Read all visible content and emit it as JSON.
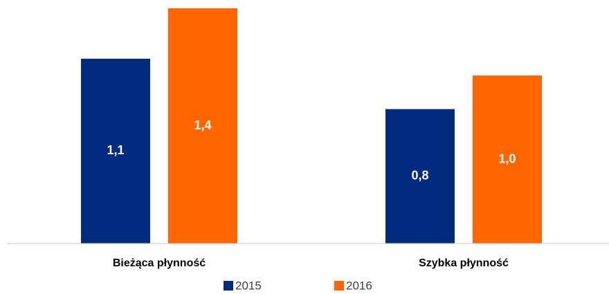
{
  "chart_data": {
    "type": "bar",
    "categories": [
      "Bieżąca płynność",
      "Szybka płynność"
    ],
    "series": [
      {
        "name": "2015",
        "color": "#002b7f",
        "values": [
          1.1,
          0.8
        ],
        "value_labels": [
          "1,1",
          "0,8"
        ]
      },
      {
        "name": "2016",
        "color": "#ff6600",
        "values": [
          1.4,
          1.0
        ],
        "value_labels": [
          "1,4",
          "1,0"
        ]
      }
    ],
    "ylim": [
      0,
      1.4
    ],
    "legend": "bottom"
  }
}
